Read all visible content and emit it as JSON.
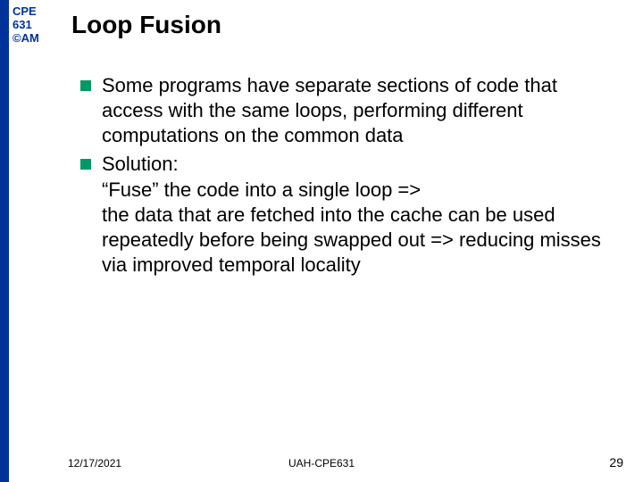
{
  "sidebar": {
    "stripe_color": "#003399",
    "course_line1": "CPE",
    "course_line2": "631",
    "course_line3": "©AM",
    "course_color": "#003399"
  },
  "title": "Loop Fusion",
  "bullets": [
    {
      "text": "Some programs have separate sections of code that access with the same loops, performing different computations on the common data"
    },
    {
      "text": "Solution:\n“Fuse” the code into a single loop =>\nthe data that are fetched into the cache can be used repeatedly before being swapped out => reducing misses via improved temporal locality"
    }
  ],
  "bullet_marker_color": "#009966",
  "footer": {
    "date": "12/17/2021",
    "center": "UAH-CPE631",
    "page": "29"
  }
}
